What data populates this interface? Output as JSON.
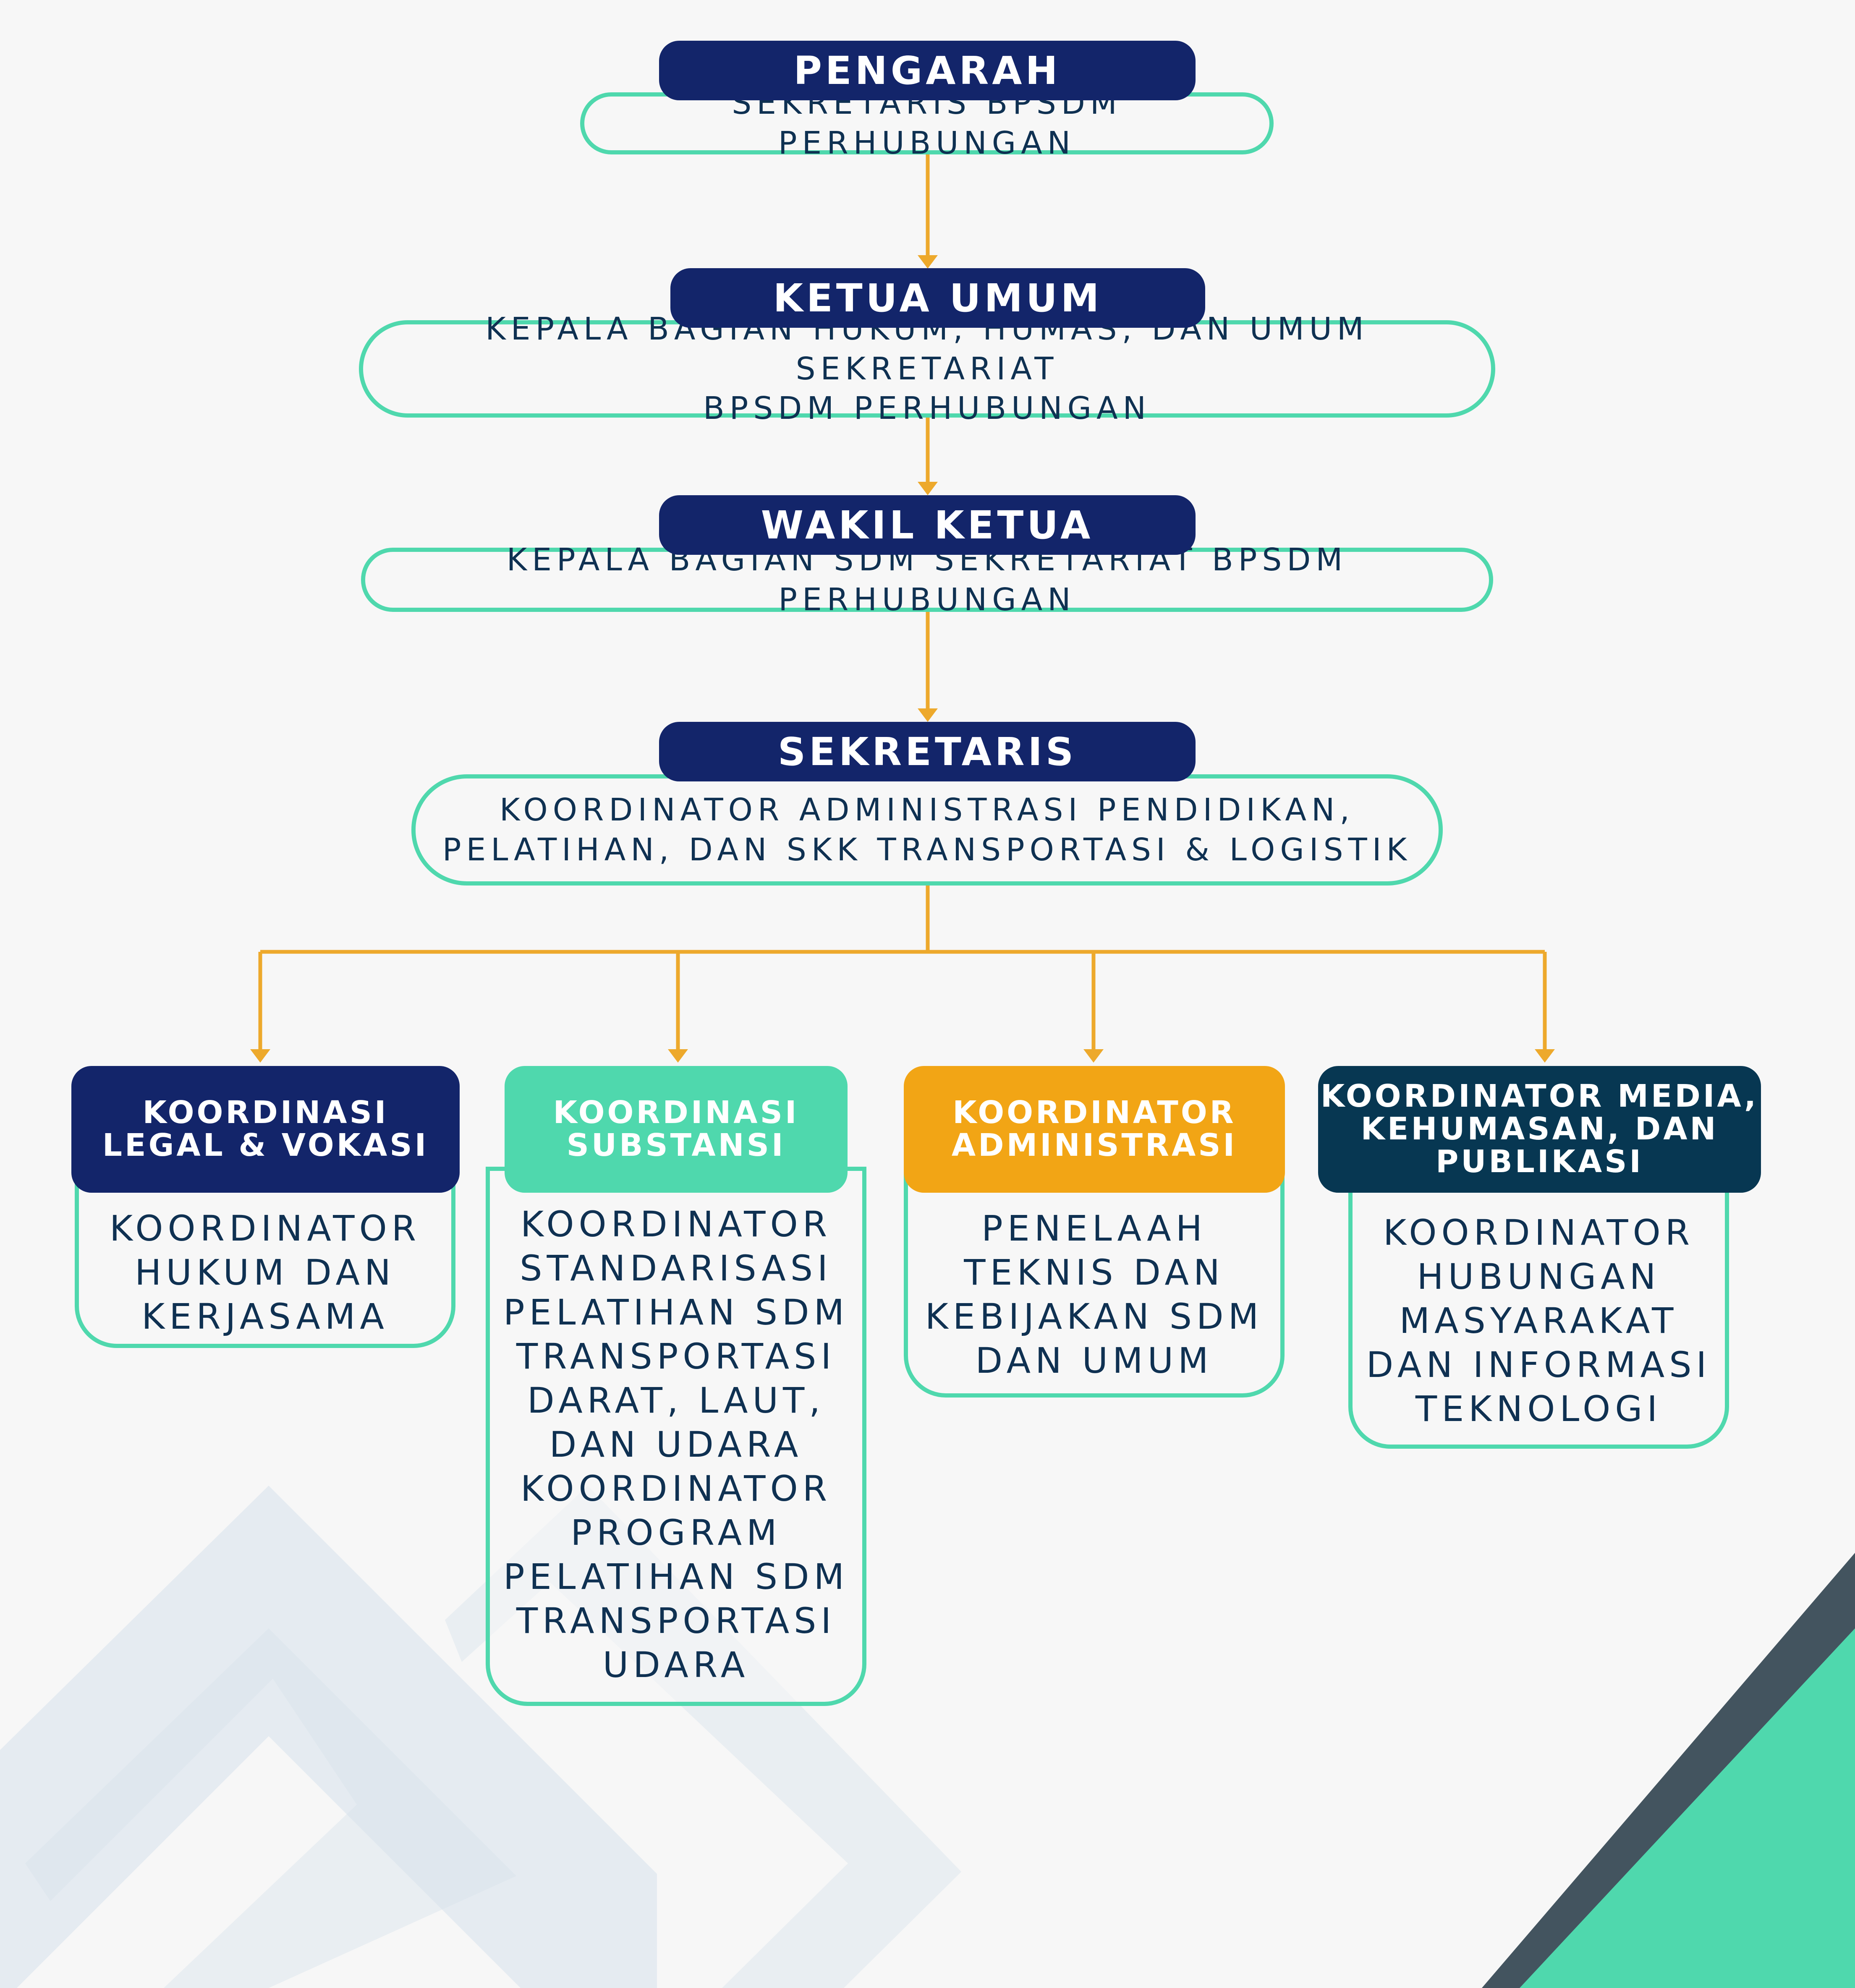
{
  "colors": {
    "navy": "#13256a",
    "teal": "#4fd8ad",
    "orange": "#f2a515",
    "dark_teal": "#073752",
    "connector": "#eda92c",
    "text": "#0f3152"
  },
  "levels": [
    {
      "title": "PENGARAH",
      "lines": [
        "SEKRETARIS BPSDM PERHUBUNGAN"
      ]
    },
    {
      "title": "KETUA UMUM",
      "lines": [
        "KEPALA BAGIAN HUKUM, HUMAS, DAN UMUM SEKRETARIAT",
        "BPSDM PERHUBUNGAN"
      ]
    },
    {
      "title": "WAKIL KETUA",
      "lines": [
        "KEPALA BAGIAN SDM SEKRETARIAT BPSDM PERHUBUNGAN"
      ]
    },
    {
      "title": "SEKRETARIS",
      "lines": [
        "KOORDINATOR ADMINISTRASI PENDIDIKAN,",
        "PELATIHAN, DAN SKK TRANSPORTASI & LOGISTIK"
      ]
    }
  ],
  "divisions": [
    {
      "title_lines": [
        "KOORDINASI",
        "LEGAL & VOKASI"
      ],
      "items": [
        "KOORDINATOR",
        "HUKUM DAN",
        "KERJASAMA"
      ]
    },
    {
      "title_lines": [
        "KOORDINASI",
        "SUBSTANSI"
      ],
      "items": [
        "KOORDINATOR",
        "STANDARISASI",
        "PELATIHAN SDM",
        "TRANSPORTASI",
        "DARAT, LAUT,",
        "DAN UDARA",
        "KOORDINATOR",
        "PROGRAM",
        "PELATIHAN SDM",
        "TRANSPORTASI",
        "UDARA"
      ]
    },
    {
      "title_lines": [
        "KOORDINATOR",
        "ADMINISTRASI"
      ],
      "items": [
        "PENELAAH",
        "TEKNIS DAN",
        "KEBIJAKAN SDM",
        "DAN UMUM"
      ]
    },
    {
      "title_lines": [
        "KOORDINATOR MEDIA,",
        "KEHUMASAN, DAN",
        "PUBLIKASI"
      ],
      "items": [
        "KOORDINATOR",
        "HUBUNGAN",
        "MASYARAKAT",
        "DAN INFORMASI",
        "TEKNOLOGI"
      ]
    }
  ]
}
